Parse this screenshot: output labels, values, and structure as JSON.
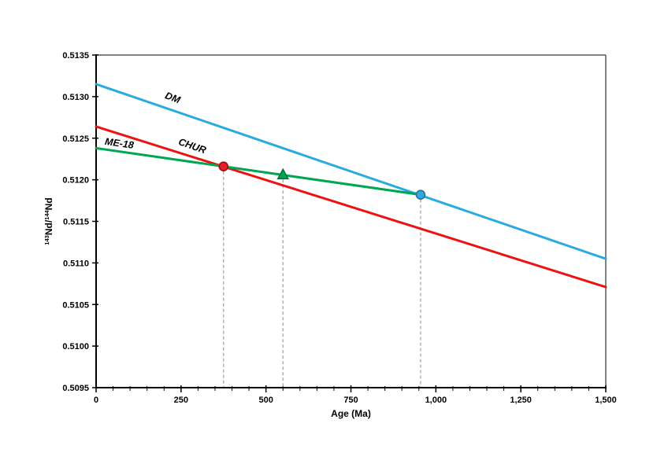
{
  "chart_data": {
    "type": "line",
    "title": "",
    "xlabel": "Age (Ma)",
    "ylabel": "143Nd/144Nd",
    "ylabel_parts": [
      {
        "text": "143",
        "sup": true
      },
      {
        "text": "Nd/",
        "sup": false
      },
      {
        "text": "144",
        "sup": true
      },
      {
        "text": "Nd",
        "sup": false
      }
    ],
    "xlim": [
      0,
      1500
    ],
    "ylim": [
      0.5095,
      0.5135
    ],
    "grid": false,
    "legend": "labels-on-lines",
    "x_major_ticks": [
      {
        "value": 0,
        "label": "0"
      },
      {
        "value": 250,
        "label": "250"
      },
      {
        "value": 500,
        "label": "500"
      },
      {
        "value": 750,
        "label": "750"
      },
      {
        "value": 1000,
        "label": "1,000"
      },
      {
        "value": 1250,
        "label": "1,250"
      },
      {
        "value": 1500,
        "label": "1,500"
      }
    ],
    "x_minor_step": 50,
    "y_ticks": [
      {
        "value": 0.5135,
        "label": "0.5135"
      },
      {
        "value": 0.513,
        "label": "0.5130"
      },
      {
        "value": 0.5125,
        "label": "0.5125"
      },
      {
        "value": 0.512,
        "label": "0.5120"
      },
      {
        "value": 0.5115,
        "label": "0.5115"
      },
      {
        "value": 0.511,
        "label": "0.5110"
      },
      {
        "value": 0.5105,
        "label": "0.5105"
      },
      {
        "value": 0.51,
        "label": "0.5100"
      },
      {
        "value": 0.5095,
        "label": "0.5095"
      }
    ],
    "series": [
      {
        "name": "DM",
        "color": "#29ABE2",
        "width": 3,
        "points": [
          [
            0,
            0.51315
          ],
          [
            1500,
            0.51105
          ]
        ]
      },
      {
        "name": "CHUR",
        "color": "#EE1111",
        "width": 3,
        "points": [
          [
            0,
            0.51264
          ],
          [
            1500,
            0.51071
          ]
        ]
      },
      {
        "name": "ME-18",
        "color": "#00A651",
        "width": 3,
        "points": [
          [
            0,
            0.51238
          ],
          [
            955,
            0.51182
          ]
        ]
      }
    ],
    "markers": [
      {
        "name": "chur-model-age-point",
        "shape": "circle",
        "x": 375,
        "y": 0.51216,
        "fill": "#ED1C24",
        "stroke": "#8B1518",
        "dropline": true
      },
      {
        "name": "sample-age-point",
        "shape": "triangle",
        "x": 550,
        "y": 0.51206,
        "fill": "#00A651",
        "stroke": "#0E6F3C",
        "dropline": true
      },
      {
        "name": "dm-model-age-point",
        "shape": "circle",
        "x": 955,
        "y": 0.51182,
        "fill": "#29ABE2",
        "stroke": "#2F6E91",
        "dropline": true
      }
    ],
    "annotations": [
      {
        "text": "DM",
        "x": 222,
        "y": 0.51295,
        "rotation": 21
      },
      {
        "text": "CHUR",
        "x": 280,
        "y": 0.51237,
        "rotation": 19
      },
      {
        "text": "ME-18",
        "x": 67,
        "y": 0.5124,
        "rotation": 8
      }
    ],
    "dropline_color": "#A6A6A6",
    "frame_color": "#595959",
    "axis_color": "#000000"
  }
}
